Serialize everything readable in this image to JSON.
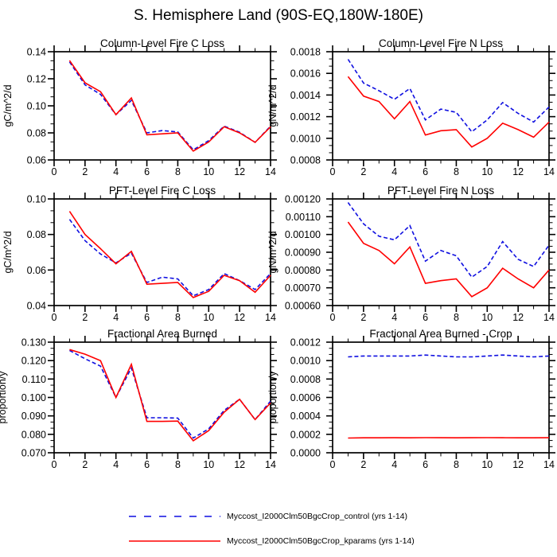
{
  "title": "S. Hemisphere Land (90S-EQ,180W-180E)",
  "legend": {
    "entries": [
      {
        "label": "Myccost_I2000Clm50BgcCrop_control (yrs 1-14)",
        "color": "#0f0fe0",
        "style": "dashed"
      },
      {
        "label": "Myccost_I2000Clm50BgcCrop_kparams (yrs 1-14)",
        "color": "#ff0000",
        "style": "solid"
      }
    ]
  },
  "chart_data": [
    {
      "id": "column-fire-c-loss",
      "type": "line",
      "title": "Column-Level Fire C Loss",
      "ylabel": "gC/m^2/d",
      "xlim": [
        0,
        14
      ],
      "xticks": [
        0,
        2,
        4,
        6,
        8,
        10,
        12,
        14
      ],
      "ylim": [
        0.06,
        0.14
      ],
      "yticks": [
        0.06,
        0.08,
        0.1,
        0.12,
        0.14
      ],
      "ytick_labels": [
        "0.06",
        "0.08",
        "0.10",
        "0.12",
        "0.14"
      ],
      "x": [
        1,
        2,
        3,
        4,
        5,
        6,
        7,
        8,
        9,
        10,
        11,
        12,
        13,
        14
      ],
      "series": [
        {
          "name": "control",
          "style": "dashed",
          "color": "#0f0fe0",
          "values": [
            0.1325,
            0.1155,
            0.1085,
            0.0935,
            0.104,
            0.08,
            0.0817,
            0.0807,
            0.0675,
            0.0743,
            0.085,
            0.0805,
            0.073,
            0.085
          ]
        },
        {
          "name": "kparams",
          "style": "solid",
          "color": "#ff0000",
          "values": [
            0.1335,
            0.117,
            0.1105,
            0.0935,
            0.1058,
            0.0786,
            0.0793,
            0.08,
            0.0665,
            0.0733,
            0.0845,
            0.08,
            0.073,
            0.0845
          ]
        }
      ]
    },
    {
      "id": "column-fire-n-loss",
      "type": "line",
      "title": "Column-Level Fire N Loss",
      "ylabel": "gN/m^2/d",
      "xlim": [
        0,
        14
      ],
      "xticks": [
        0,
        2,
        4,
        6,
        8,
        10,
        12,
        14
      ],
      "ylim": [
        0.0008,
        0.0018
      ],
      "yticks": [
        0.0008,
        0.001,
        0.0012,
        0.0014,
        0.0016,
        0.0018
      ],
      "ytick_labels": [
        "0.0008",
        "0.0010",
        "0.0012",
        "0.0014",
        "0.0016",
        "0.0018"
      ],
      "x": [
        1,
        2,
        3,
        4,
        5,
        6,
        7,
        8,
        9,
        10,
        11,
        12,
        13,
        14
      ],
      "series": [
        {
          "name": "control",
          "style": "dashed",
          "color": "#0f0fe0",
          "values": [
            0.00173,
            0.00151,
            0.00144,
            0.00136,
            0.00146,
            0.00117,
            0.00127,
            0.00124,
            0.00106,
            0.00117,
            0.00133,
            0.00123,
            0.00115,
            0.00129
          ]
        },
        {
          "name": "kparams",
          "style": "solid",
          "color": "#ff0000",
          "values": [
            0.00157,
            0.00139,
            0.00134,
            0.00118,
            0.00134,
            0.00103,
            0.00107,
            0.00108,
            0.00092,
            0.001,
            0.00114,
            0.00108,
            0.00101,
            0.00115
          ]
        }
      ]
    },
    {
      "id": "pft-fire-c-loss",
      "type": "line",
      "title": "PFT-Level Fire C Loss",
      "ylabel": "gC/m^2/d",
      "xlim": [
        0,
        14
      ],
      "xticks": [
        0,
        2,
        4,
        6,
        8,
        10,
        12,
        14
      ],
      "ylim": [
        0.04,
        0.1
      ],
      "yticks": [
        0.04,
        0.06,
        0.08,
        0.1
      ],
      "ytick_labels": [
        "0.04",
        "0.06",
        "0.08",
        "0.10"
      ],
      "x": [
        1,
        2,
        3,
        4,
        5,
        6,
        7,
        8,
        9,
        10,
        11,
        12,
        13,
        14
      ],
      "series": [
        {
          "name": "control",
          "style": "dashed",
          "color": "#0f0fe0",
          "values": [
            0.0885,
            0.0765,
            0.069,
            0.064,
            0.0695,
            0.053,
            0.056,
            0.055,
            0.0455,
            0.049,
            0.058,
            0.054,
            0.049,
            0.058
          ]
        },
        {
          "name": "kparams",
          "style": "solid",
          "color": "#ff0000",
          "values": [
            0.093,
            0.08,
            0.072,
            0.0635,
            0.0705,
            0.052,
            0.0525,
            0.053,
            0.0445,
            0.048,
            0.057,
            0.054,
            0.0475,
            0.057
          ]
        }
      ]
    },
    {
      "id": "pft-fire-n-loss",
      "type": "line",
      "title": "PFT-Level Fire N Loss",
      "ylabel": "gN/m^2/d",
      "xlim": [
        0,
        14
      ],
      "xticks": [
        0,
        2,
        4,
        6,
        8,
        10,
        12,
        14
      ],
      "ylim": [
        0.0006,
        0.0012
      ],
      "yticks": [
        0.0006,
        0.0007,
        0.0008,
        0.0009,
        0.001,
        0.0011,
        0.0012
      ],
      "ytick_labels": [
        "0.00060",
        "0.00070",
        "0.00080",
        "0.00090",
        "0.00100",
        "0.00110",
        "0.00120"
      ],
      "x": [
        1,
        2,
        3,
        4,
        5,
        6,
        7,
        8,
        9,
        10,
        11,
        12,
        13,
        14
      ],
      "series": [
        {
          "name": "control",
          "style": "dashed",
          "color": "#0f0fe0",
          "values": [
            0.00118,
            0.00106,
            0.00099,
            0.00097,
            0.00105,
            0.00085,
            0.00091,
            0.00088,
            0.00076,
            0.00082,
            0.00096,
            0.00086,
            0.00082,
            0.00094
          ]
        },
        {
          "name": "kparams",
          "style": "solid",
          "color": "#ff0000",
          "values": [
            0.00107,
            0.00095,
            0.00091,
            0.000835,
            0.00093,
            0.000725,
            0.00074,
            0.00075,
            0.00065,
            0.0007,
            0.00081,
            0.00075,
            0.0007,
            0.0008
          ]
        }
      ]
    },
    {
      "id": "fractional-area-burned",
      "type": "line",
      "title": "Fractional Area Burned",
      "ylabel": "proportion/y",
      "xlim": [
        0,
        14
      ],
      "xticks": [
        0,
        2,
        4,
        6,
        8,
        10,
        12,
        14
      ],
      "ylim": [
        0.07,
        0.13
      ],
      "yticks": [
        0.07,
        0.08,
        0.09,
        0.1,
        0.11,
        0.12,
        0.13
      ],
      "ytick_labels": [
        "0.070",
        "0.080",
        "0.090",
        "0.100",
        "0.110",
        "0.120",
        "0.130"
      ],
      "x": [
        1,
        2,
        3,
        4,
        5,
        6,
        7,
        8,
        9,
        10,
        11,
        12,
        13,
        14
      ],
      "series": [
        {
          "name": "control",
          "style": "dashed",
          "color": "#0f0fe0",
          "values": [
            0.1255,
            0.121,
            0.117,
            0.1,
            0.116,
            0.089,
            0.089,
            0.0888,
            0.078,
            0.083,
            0.093,
            0.099,
            0.088,
            0.098
          ]
        },
        {
          "name": "kparams",
          "style": "solid",
          "color": "#ff0000",
          "values": [
            0.126,
            0.1235,
            0.12,
            0.1,
            0.118,
            0.087,
            0.087,
            0.0872,
            0.0765,
            0.082,
            0.092,
            0.099,
            0.088,
            0.097
          ]
        }
      ]
    },
    {
      "id": "fractional-area-burned-crop",
      "type": "line",
      "title": "Fractional Area Burned - Crop",
      "ylabel": "proportion/y",
      "xlim": [
        0,
        14
      ],
      "xticks": [
        0,
        2,
        4,
        6,
        8,
        10,
        12,
        14
      ],
      "ylim": [
        0.0,
        0.0012
      ],
      "yticks": [
        0.0,
        0.0002,
        0.0004,
        0.0006,
        0.0008,
        0.001,
        0.0012
      ],
      "ytick_labels": [
        "0.0000",
        "0.0002",
        "0.0004",
        "0.0006",
        "0.0008",
        "0.0010",
        "0.0012"
      ],
      "x": [
        1,
        2,
        3,
        4,
        5,
        6,
        7,
        8,
        9,
        10,
        11,
        12,
        13,
        14
      ],
      "series": [
        {
          "name": "control",
          "style": "dashed",
          "color": "#0f0fe0",
          "values": [
            0.00104,
            0.00105,
            0.00105,
            0.00105,
            0.00105,
            0.00106,
            0.00105,
            0.00104,
            0.00104,
            0.00105,
            0.00106,
            0.00105,
            0.00104,
            0.00105
          ]
        },
        {
          "name": "kparams",
          "style": "solid",
          "color": "#ff0000",
          "values": [
            0.00016,
            0.000162,
            0.000162,
            0.000163,
            0.000162,
            0.000164,
            0.000163,
            0.000162,
            0.000163,
            0.000164,
            0.000163,
            0.000162,
            0.000162,
            0.000163
          ]
        }
      ]
    }
  ]
}
